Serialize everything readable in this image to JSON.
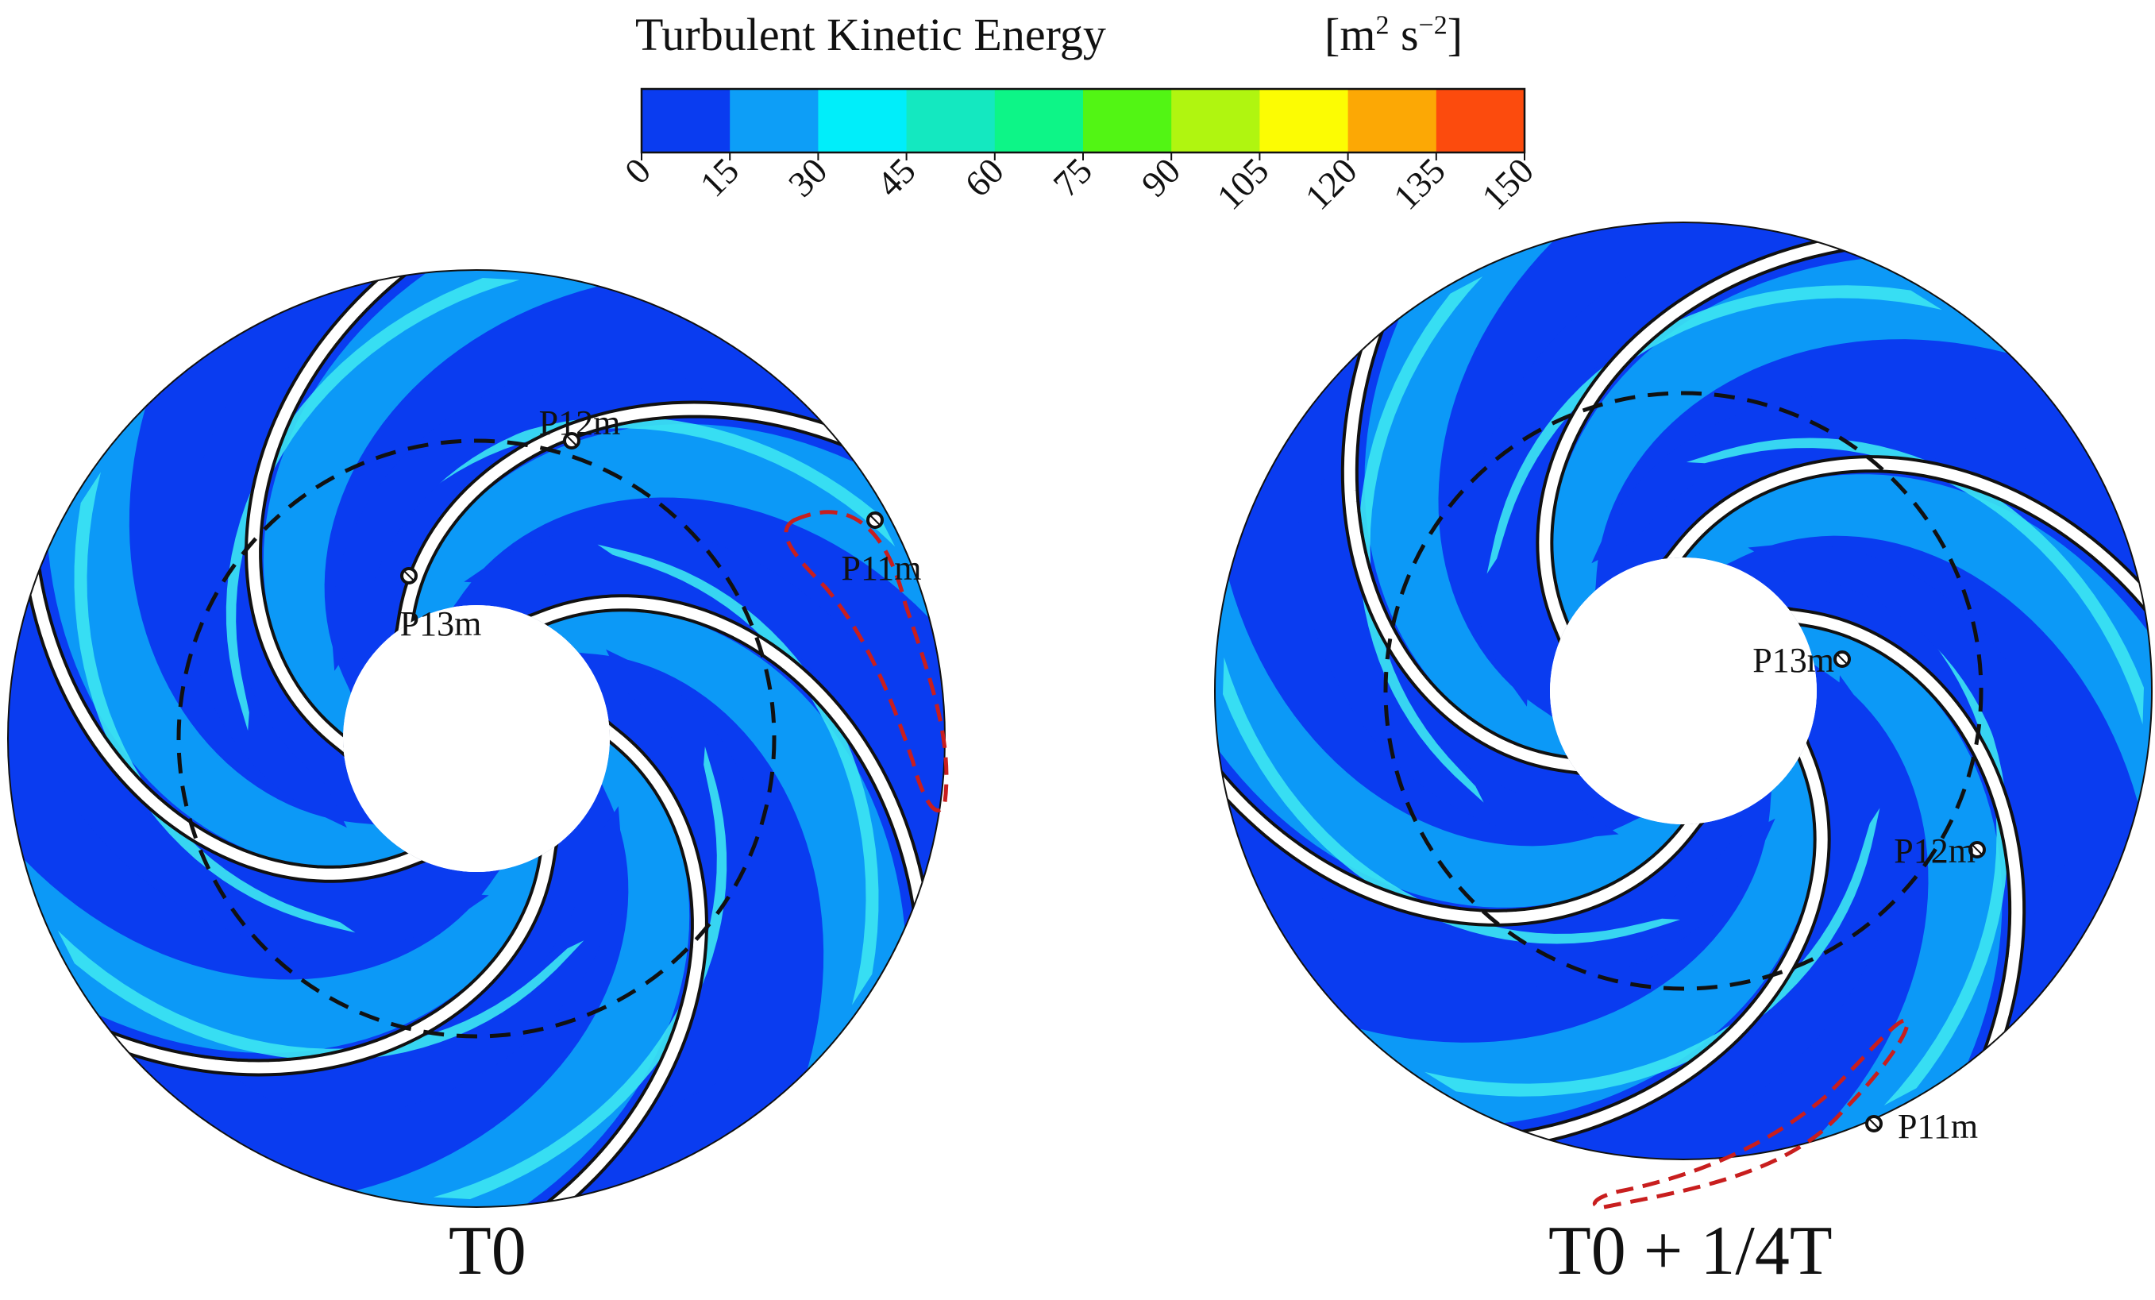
{
  "colorbar": {
    "title": "Turbulent Kinetic Energy",
    "unit_main": "[m",
    "unit_sup1": "2",
    "unit_mid": " s",
    "unit_sup2": "−2",
    "unit_end": "]",
    "ticks": [
      "0",
      "15",
      "30",
      "45",
      "60",
      "75",
      "90",
      "105",
      "120",
      "135",
      "150"
    ],
    "colors": [
      "#0a3cf0",
      "#0d9ef7",
      "#00eefa",
      "#14e8c0",
      "#0df587",
      "#52f514",
      "#b0f510",
      "#fcfc03",
      "#fca805",
      "#fc4b0d"
    ]
  },
  "panels": [
    {
      "label": "T0",
      "points": [
        "P11m",
        "P12m",
        "P13m"
      ]
    },
    {
      "label": "T0 + 1/4T",
      "points": [
        "P11m",
        "P12m",
        "P13m"
      ]
    }
  ],
  "colors": {
    "background": "#ffffff",
    "dark_blue": "#0a3cf0",
    "mid_blue": "#0d9ef7",
    "cyan": "#3ce6f2",
    "green": "#2fe08c",
    "blade": "#ffffff",
    "dashed_circle": "#111111",
    "highlight_outline": "#c81e1e"
  }
}
